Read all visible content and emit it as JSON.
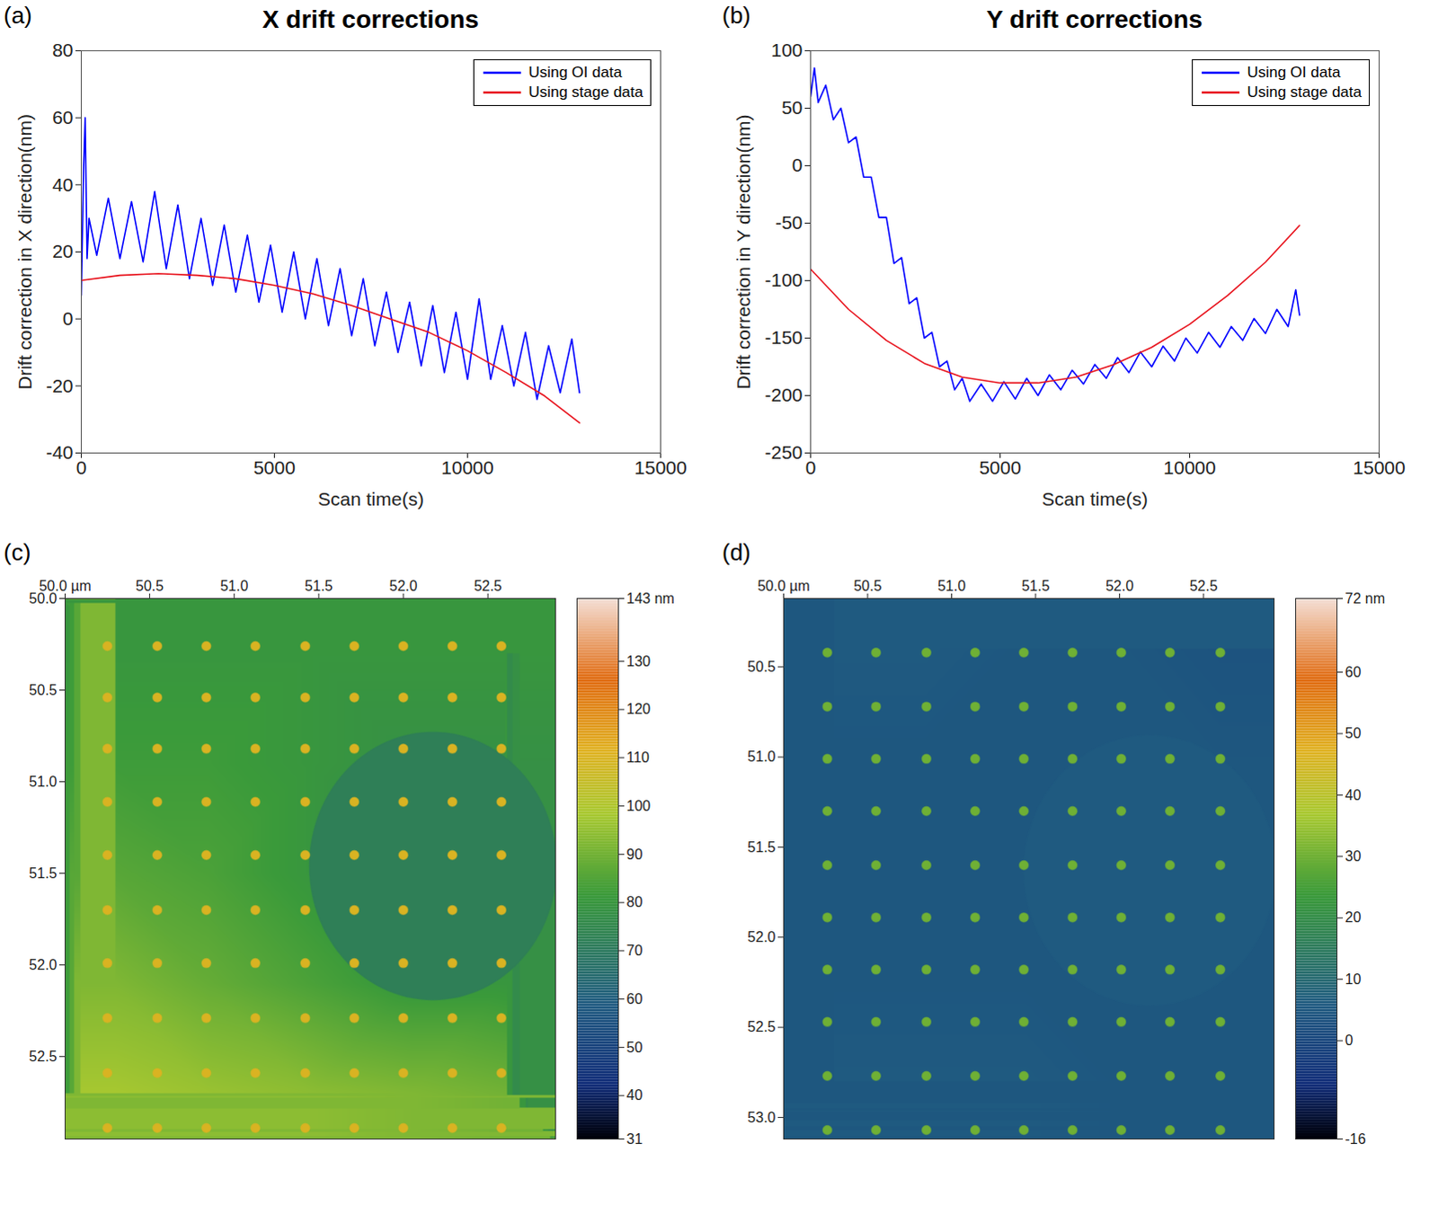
{
  "chart_data": [
    {
      "panel": "(a)",
      "type": "line",
      "title": "X drift corrections",
      "xlabel": "Scan time(s)",
      "ylabel": "Drift correction in X direction(nm)",
      "xlim": [
        0,
        15000
      ],
      "xticks": [
        0,
        5000,
        10000,
        15000
      ],
      "ylim": [
        -40,
        80
      ],
      "yticks": [
        -40,
        -20,
        0,
        20,
        40,
        60,
        80
      ],
      "legend": "northeast",
      "grid": false,
      "series": [
        {
          "name": "Using OI data",
          "color": "#0000ff",
          "x": [
            0,
            60,
            100,
            150,
            200,
            400,
            700,
            1000,
            1300,
            1600,
            1900,
            2200,
            2500,
            2800,
            3100,
            3400,
            3700,
            4000,
            4300,
            4600,
            4900,
            5200,
            5500,
            5800,
            6100,
            6400,
            6700,
            7000,
            7300,
            7600,
            7900,
            8200,
            8500,
            8800,
            9100,
            9400,
            9700,
            10000,
            10300,
            10600,
            10900,
            11200,
            11500,
            11800,
            12100,
            12400,
            12700,
            12900
          ],
          "values": [
            7,
            45,
            60,
            18,
            30,
            19,
            36,
            18,
            35,
            17,
            38,
            15,
            34,
            12,
            30,
            10,
            28,
            8,
            25,
            5,
            22,
            2,
            20,
            0,
            18,
            -2,
            15,
            -5,
            12,
            -8,
            8,
            -10,
            5,
            -14,
            4,
            -16,
            2,
            -18,
            6,
            -18,
            -2,
            -20,
            -4,
            -24,
            -8,
            -22,
            -6,
            -22
          ]
        },
        {
          "name": "Using stage data",
          "color": "#e8141e",
          "x": [
            0,
            1000,
            2000,
            3000,
            4000,
            5000,
            6000,
            7000,
            8000,
            9000,
            10000,
            11000,
            12000,
            12900
          ],
          "values": [
            11.5,
            13,
            13.5,
            13,
            12,
            10,
            7.5,
            4,
            0,
            -4,
            -9.5,
            -16,
            -23,
            -31
          ]
        }
      ]
    },
    {
      "panel": "(b)",
      "type": "line",
      "title": "Y drift corrections",
      "xlabel": "Scan time(s)",
      "ylabel": "Drift correction in Y direction(nm)",
      "xlim": [
        0,
        15000
      ],
      "xticks": [
        0,
        5000,
        10000,
        15000
      ],
      "ylim": [
        -250,
        100
      ],
      "yticks": [
        -250,
        -200,
        -150,
        -100,
        -50,
        0,
        50,
        100
      ],
      "legend": "northeast",
      "grid": false,
      "series": [
        {
          "name": "Using OI data",
          "color": "#0000ff",
          "x": [
            0,
            100,
            200,
            400,
            600,
            800,
            1000,
            1200,
            1400,
            1600,
            1800,
            2000,
            2200,
            2400,
            2600,
            2800,
            3000,
            3200,
            3400,
            3600,
            3800,
            4000,
            4200,
            4500,
            4800,
            5100,
            5400,
            5700,
            6000,
            6300,
            6600,
            6900,
            7200,
            7500,
            7800,
            8100,
            8400,
            8700,
            9000,
            9300,
            9600,
            9900,
            10200,
            10500,
            10800,
            11100,
            11400,
            11700,
            12000,
            12300,
            12600,
            12800,
            12900
          ],
          "values": [
            60,
            85,
            55,
            70,
            40,
            50,
            20,
            25,
            -10,
            -10,
            -45,
            -45,
            -85,
            -80,
            -120,
            -115,
            -150,
            -145,
            -175,
            -170,
            -195,
            -185,
            -205,
            -190,
            -205,
            -188,
            -203,
            -185,
            -200,
            -182,
            -195,
            -178,
            -190,
            -173,
            -185,
            -167,
            -180,
            -162,
            -175,
            -157,
            -170,
            -150,
            -163,
            -145,
            -158,
            -140,
            -152,
            -133,
            -146,
            -125,
            -140,
            -108,
            -130
          ]
        },
        {
          "name": "Using stage data",
          "color": "#e8141e",
          "x": [
            0,
            1000,
            2000,
            3000,
            4000,
            5000,
            6000,
            7000,
            8000,
            9000,
            10000,
            11000,
            12000,
            12900
          ],
          "values": [
            -90,
            -125,
            -152,
            -172,
            -184,
            -189,
            -189,
            -184,
            -173,
            -158,
            -138,
            -113,
            -84,
            -52
          ]
        }
      ]
    },
    {
      "panel": "(c)",
      "type": "heatmap",
      "xlim": [
        50.0,
        52.9
      ],
      "xticks": [
        {
          "value": 50,
          "label": "50.0 µm"
        },
        50.5,
        {
          "value": 51,
          "label": "51.0"
        },
        51.5,
        {
          "value": 52,
          "label": "52.0"
        },
        52.5
      ],
      "ylim": [
        50.0,
        52.95
      ],
      "yticks": [
        {
          "value": 50,
          "label": "50.0"
        },
        50.5,
        {
          "value": 51,
          "label": "51.0"
        },
        51.5,
        {
          "value": 52,
          "label": "52.0"
        },
        52.5
      ],
      "cells": {
        "x": [
          50.3,
          50.85,
          51.45,
          52.05,
          52.6
        ],
        "y": [
          50.3,
          50.9,
          51.5,
          52.1,
          52.7
        ],
        "values": [
          [
            80,
            80,
            80,
            80,
            80
          ],
          [
            82,
            82,
            80,
            78,
            78
          ],
          [
            86,
            84,
            80,
            76,
            76
          ],
          [
            92,
            88,
            84,
            80,
            80
          ],
          [
            98,
            96,
            94,
            92,
            90
          ]
        ]
      },
      "dots": {
        "x": [
          50.25,
          50.545,
          50.835,
          51.125,
          51.42,
          51.71,
          52.0,
          52.29,
          52.58
        ],
        "y": [
          50.26,
          50.54,
          50.82,
          51.11,
          51.4,
          51.7,
          51.99,
          52.29,
          52.59,
          52.89
        ],
        "value": 110
      },
      "circle": {
        "cx": 52.175,
        "cy": 51.46,
        "r": 0.73,
        "value": 72
      },
      "colorbar": {
        "range": [
          31,
          143
        ],
        "ticks": [
          {
            "value": 143,
            "label": "143 nm"
          },
          130,
          120,
          110,
          100,
          90,
          80,
          70,
          60,
          50,
          40,
          31
        ]
      }
    },
    {
      "panel": "(d)",
      "type": "heatmap",
      "xlim": [
        50.0,
        52.92
      ],
      "xticks": [
        {
          "value": 50,
          "label": "50.0 µm"
        },
        50.5,
        {
          "value": 51,
          "label": "51.0"
        },
        51.5,
        {
          "value": 52,
          "label": "52.0"
        },
        52.5
      ],
      "ylim": [
        50.12,
        53.12
      ],
      "yticks": [
        50.5,
        {
          "value": 51,
          "label": "51.0"
        },
        51.5,
        {
          "value": 52,
          "label": "52.0"
        },
        52.5,
        {
          "value": 53,
          "label": "53.0"
        }
      ],
      "cells": {
        "x": [
          50.3,
          50.85,
          51.45,
          52.05,
          52.6
        ],
        "y": [
          50.4,
          51.0,
          51.6,
          52.2,
          52.8
        ],
        "values": [
          [
            6,
            6,
            5,
            5,
            4
          ],
          [
            5,
            5,
            5,
            5,
            5
          ],
          [
            5,
            5,
            5,
            5,
            5
          ],
          [
            5,
            5,
            5,
            5,
            5
          ],
          [
            6,
            6,
            6,
            5,
            5
          ]
        ]
      },
      "dots": {
        "x": [
          50.26,
          50.55,
          50.85,
          51.14,
          51.43,
          51.72,
          52.01,
          52.3,
          52.6
        ],
        "y": [
          50.42,
          50.72,
          51.01,
          51.3,
          51.6,
          51.89,
          52.18,
          52.47,
          52.77,
          53.07
        ],
        "value": 30
      },
      "circle": {
        "cx": 52.18,
        "cy": 51.63,
        "r": 0.75,
        "value": 6
      },
      "colorbar": {
        "range": [
          -16,
          72
        ],
        "ticks": [
          {
            "value": 72,
            "label": "72 nm"
          },
          60,
          50,
          40,
          30,
          20,
          10,
          0,
          -16
        ]
      }
    }
  ]
}
